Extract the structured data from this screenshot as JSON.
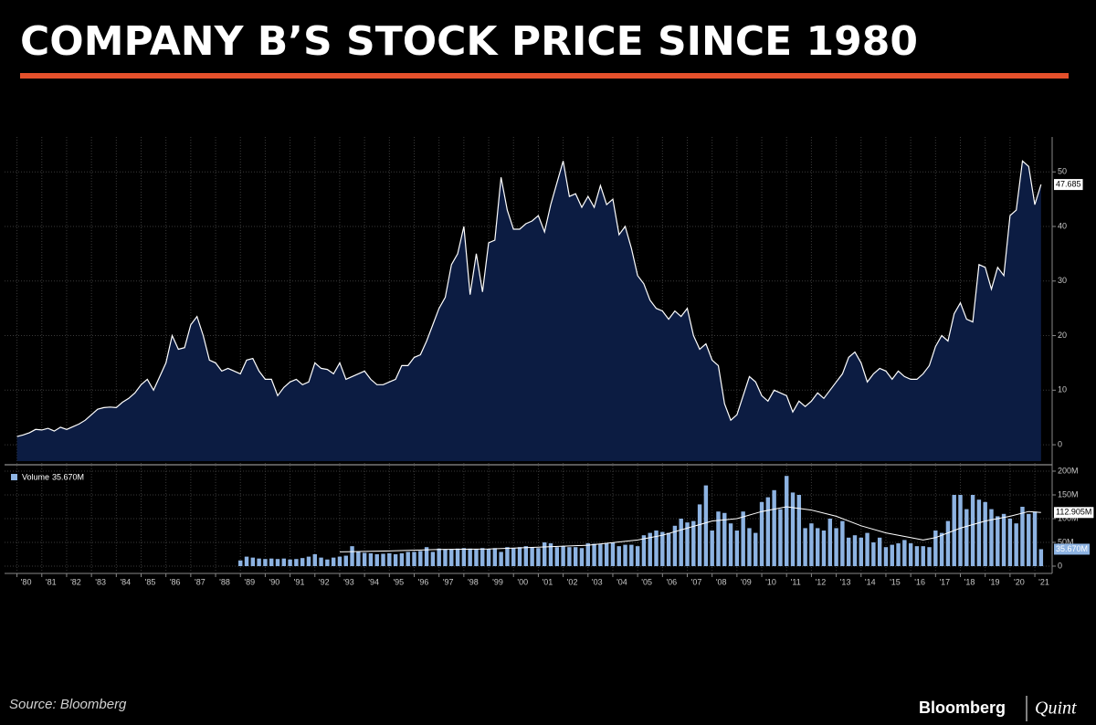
{
  "title": "COMPANY B’S STOCK PRICE SINCE 1980",
  "source": "Source: Bloomberg",
  "logo": {
    "brand": "Bloomberg",
    "partner": "Quint"
  },
  "chart_data": [
    {
      "type": "area",
      "color": "#ffffff",
      "fill": "#0c1c42",
      "xlim": [
        1979.5,
        2021.55
      ],
      "ylim": [
        -3,
        56.4
      ],
      "yticks": [
        0,
        10,
        20,
        30,
        40,
        50
      ],
      "grid": true,
      "x": [
        1980,
        1980.25,
        1980.5,
        1980.75,
        1981,
        1981.25,
        1981.5,
        1981.75,
        1982,
        1982.25,
        1982.5,
        1982.75,
        1983,
        1983.25,
        1983.5,
        1983.75,
        1984,
        1984.25,
        1984.5,
        1984.75,
        1985,
        1985.25,
        1985.5,
        1985.75,
        1986,
        1986.25,
        1986.5,
        1986.75,
        1987,
        1987.25,
        1987.5,
        1987.75,
        1988,
        1988.25,
        1988.5,
        1988.75,
        1989,
        1989.25,
        1989.5,
        1989.75,
        1990,
        1990.25,
        1990.5,
        1990.75,
        1991,
        1991.25,
        1991.5,
        1991.75,
        1992,
        1992.25,
        1992.5,
        1992.75,
        1993,
        1993.25,
        1993.5,
        1993.75,
        1994,
        1994.25,
        1994.5,
        1994.75,
        1995,
        1995.25,
        1995.5,
        1995.75,
        1996,
        1996.25,
        1996.5,
        1996.75,
        1997,
        1997.25,
        1997.5,
        1997.75,
        1998,
        1998.25,
        1998.5,
        1998.75,
        1999,
        1999.25,
        1999.5,
        1999.75,
        2000,
        2000.25,
        2000.5,
        2000.75,
        2001,
        2001.25,
        2001.5,
        2001.75,
        2002,
        2002.25,
        2002.5,
        2002.75,
        2003,
        2003.25,
        2003.5,
        2003.75,
        2004,
        2004.25,
        2004.5,
        2004.75,
        2005,
        2005.25,
        2005.5,
        2005.75,
        2006,
        2006.25,
        2006.5,
        2006.75,
        2007,
        2007.25,
        2007.5,
        2007.75,
        2008,
        2008.25,
        2008.5,
        2008.75,
        2009,
        2009.25,
        2009.5,
        2009.75,
        2010,
        2010.25,
        2010.5,
        2010.75,
        2011,
        2011.25,
        2011.5,
        2011.75,
        2012,
        2012.25,
        2012.5,
        2012.75,
        2013,
        2013.25,
        2013.5,
        2013.75,
        2014,
        2014.25,
        2014.5,
        2014.75,
        2015,
        2015.25,
        2015.5,
        2015.75,
        2016,
        2016.25,
        2016.5,
        2016.75,
        2017,
        2017.25,
        2017.5,
        2017.75,
        2018,
        2018.25,
        2018.5,
        2018.75,
        2019,
        2019.25,
        2019.5,
        2019.75,
        2020,
        2020.25,
        2020.5,
        2020.75,
        2021,
        2021.25
      ],
      "values": [
        1.5,
        1.8,
        2.2,
        2.8,
        2.7,
        3.0,
        2.5,
        3.2,
        2.8,
        3.3,
        3.8,
        4.5,
        5.5,
        6.5,
        6.8,
        6.9,
        6.8,
        7.8,
        8.5,
        9.5,
        11,
        12,
        10,
        12.5,
        15,
        20,
        17.5,
        17.8,
        22,
        23.5,
        20,
        15.5,
        15,
        13.5,
        14,
        13.5,
        13,
        15.5,
        15.8,
        13.5,
        12,
        12,
        9,
        10.5,
        11.5,
        12,
        11,
        11.5,
        15,
        14,
        13.8,
        13,
        15,
        12,
        12.5,
        13,
        13.5,
        12,
        11,
        11,
        11.5,
        12,
        14.5,
        14.5,
        16,
        16.5,
        19,
        22,
        25,
        27,
        33,
        35,
        40,
        27.5,
        35,
        28,
        37,
        37.5,
        49,
        43,
        39.5,
        39.5,
        40.5,
        41,
        42,
        39,
        44,
        48,
        52,
        45.5,
        46,
        43.5,
        45.5,
        43.5,
        47.5,
        44,
        45,
        38.5,
        40,
        36,
        31,
        29.5,
        26.5,
        25,
        24.5,
        23,
        24.5,
        23.5,
        25,
        20,
        17.5,
        18.5,
        15.5,
        14.5,
        7.5,
        4.5,
        5.5,
        9,
        12.5,
        11.5,
        9,
        8,
        10,
        9.5,
        9,
        6,
        8,
        7,
        8,
        9.5,
        8.5,
        10,
        11.5,
        13,
        16,
        17,
        15,
        11.5,
        13,
        14,
        13.5,
        12,
        13.5,
        12.5,
        12,
        12,
        13,
        14.5,
        18,
        20,
        19,
        24,
        26,
        23,
        22.5,
        33,
        32.5,
        28.5,
        32.5,
        31,
        42,
        43,
        52,
        51,
        44,
        47.685
      ]
    },
    {
      "type": "bar",
      "xlim": [
        1979.5,
        2021.55
      ],
      "ylim": [
        -9.6,
        207.7
      ],
      "yticks": [
        0,
        {
          "value": 50,
          "label": "50M"
        },
        {
          "value": 100,
          "label": "100M"
        },
        {
          "value": 150,
          "label": "150M"
        },
        {
          "value": 200,
          "label": "200M"
        }
      ],
      "grid": true,
      "xticks": [
        {
          "value": 1980,
          "label": "'80"
        },
        {
          "value": 1981,
          "label": "'81"
        },
        {
          "value": 1982,
          "label": "'82"
        },
        {
          "value": 1983,
          "label": "'83"
        },
        {
          "value": 1984,
          "label": "'84"
        },
        {
          "value": 1985,
          "label": "'85"
        },
        {
          "value": 1986,
          "label": "'86"
        },
        {
          "value": 1987,
          "label": "'87"
        },
        {
          "value": 1988,
          "label": "'88"
        },
        {
          "value": 1989,
          "label": "'89"
        },
        {
          "value": 1990,
          "label": "'90"
        },
        {
          "value": 1991,
          "label": "'91"
        },
        {
          "value": 1992,
          "label": "'92"
        },
        {
          "value": 1993,
          "label": "'93"
        },
        {
          "value": 1994,
          "label": "'94"
        },
        {
          "value": 1995,
          "label": "'95"
        },
        {
          "value": 1996,
          "label": "'96"
        },
        {
          "value": 1997,
          "label": "'97"
        },
        {
          "value": 1998,
          "label": "'98"
        },
        {
          "value": 1999,
          "label": "'99"
        },
        {
          "value": 2000,
          "label": "'00"
        },
        {
          "value": 2001,
          "label": "'01"
        },
        {
          "value": 2002,
          "label": "'02"
        },
        {
          "value": 2003,
          "label": "'03"
        },
        {
          "value": 2004,
          "label": "'04"
        },
        {
          "value": 2005,
          "label": "'05"
        },
        {
          "value": 2006,
          "label": "'06"
        },
        {
          "value": 2007,
          "label": "'07"
        },
        {
          "value": 2008,
          "label": "'08"
        },
        {
          "value": 2009,
          "label": "'09"
        },
        {
          "value": 2010,
          "label": "'10"
        },
        {
          "value": 2011,
          "label": "'11"
        },
        {
          "value": 2012,
          "label": "'12"
        },
        {
          "value": 2013,
          "label": "'13"
        },
        {
          "value": 2014,
          "label": "'14"
        },
        {
          "value": 2015,
          "label": "'15"
        },
        {
          "value": 2016,
          "label": "'16"
        },
        {
          "value": 2017,
          "label": "'17"
        },
        {
          "value": 2018,
          "label": "'18"
        },
        {
          "value": 2019,
          "label": "'19"
        },
        {
          "value": 2020,
          "label": "'20"
        },
        {
          "value": 2021,
          "label": "'21"
        }
      ],
      "series": [
        {
          "name": "Volume",
          "color": "#8db3e2",
          "last_value_label": "35.670M",
          "x": [
            1989,
            1989.25,
            1989.5,
            1989.75,
            1990,
            1990.25,
            1990.5,
            1990.75,
            1991,
            1991.25,
            1991.5,
            1991.75,
            1992,
            1992.25,
            1992.5,
            1992.75,
            1993,
            1993.25,
            1993.5,
            1993.75,
            1994,
            1994.25,
            1994.5,
            1994.75,
            1995,
            1995.25,
            1995.5,
            1995.75,
            1996,
            1996.25,
            1996.5,
            1996.75,
            1997,
            1997.25,
            1997.5,
            1997.75,
            1998,
            1998.25,
            1998.5,
            1998.75,
            1999,
            1999.25,
            1999.5,
            1999.75,
            2000,
            2000.25,
            2000.5,
            2000.75,
            2001,
            2001.25,
            2001.5,
            2001.75,
            2002,
            2002.25,
            2002.5,
            2002.75,
            2003,
            2003.25,
            2003.5,
            2003.75,
            2004,
            2004.25,
            2004.5,
            2004.75,
            2005,
            2005.25,
            2005.5,
            2005.75,
            2006,
            2006.25,
            2006.5,
            2006.75,
            2007,
            2007.25,
            2007.5,
            2007.75,
            2008,
            2008.25,
            2008.5,
            2008.75,
            2009,
            2009.25,
            2009.5,
            2009.75,
            2010,
            2010.25,
            2010.5,
            2010.75,
            2011,
            2011.25,
            2011.5,
            2011.75,
            2012,
            2012.25,
            2012.5,
            2012.75,
            2013,
            2013.25,
            2013.5,
            2013.75,
            2014,
            2014.25,
            2014.5,
            2014.75,
            2015,
            2015.25,
            2015.5,
            2015.75,
            2016,
            2016.25,
            2016.5,
            2016.75,
            2017,
            2017.25,
            2017.5,
            2017.75,
            2018,
            2018.25,
            2018.5,
            2018.75,
            2019,
            2019.25,
            2019.5,
            2019.75,
            2020,
            2020.25,
            2020.5,
            2020.75,
            2021,
            2021.25
          ],
          "values": [
            12,
            20,
            18,
            16,
            15,
            16,
            15,
            16,
            14,
            15,
            17,
            20,
            25,
            18,
            14,
            18,
            20,
            22,
            42,
            30,
            28,
            27,
            25,
            26,
            27,
            25,
            27,
            30,
            30,
            32,
            40,
            30,
            37,
            36,
            36,
            37,
            38,
            37,
            36,
            38,
            36,
            38,
            30,
            40,
            38,
            40,
            42,
            40,
            38,
            50,
            48,
            40,
            42,
            40,
            40,
            38,
            48,
            47,
            46,
            48,
            50,
            42,
            45,
            45,
            42,
            65,
            70,
            75,
            72,
            70,
            85,
            100,
            92,
            95,
            130,
            170,
            75,
            115,
            112,
            90,
            75,
            115,
            80,
            70,
            135,
            145,
            160,
            120,
            190,
            155,
            150,
            80,
            90,
            80,
            75,
            100,
            80,
            95,
            60,
            65,
            60,
            70,
            50,
            60,
            40,
            45,
            48,
            55,
            48,
            42,
            42,
            40,
            75,
            70,
            95,
            150,
            150,
            120,
            150,
            140,
            135,
            120,
            105,
            110,
            100,
            90,
            125,
            110,
            115,
            35.67
          ]
        },
        {
          "type": "line",
          "color": "#ffffff",
          "last_value_label": "112.905M",
          "x": [
            1993,
            1995,
            1997,
            1999,
            2001,
            2003,
            2005,
            2006,
            2007,
            2008,
            2009,
            2010,
            2011,
            2012,
            2013,
            2014,
            2015,
            2016,
            2016.5,
            2017,
            2018,
            2019,
            2020,
            2020.75,
            2021.25
          ],
          "values": [
            30,
            32,
            35,
            36,
            40,
            44,
            55,
            65,
            80,
            95,
            100,
            115,
            125,
            118,
            105,
            85,
            70,
            60,
            55,
            60,
            80,
            95,
            105,
            115,
            112.905
          ]
        }
      ]
    }
  ]
}
